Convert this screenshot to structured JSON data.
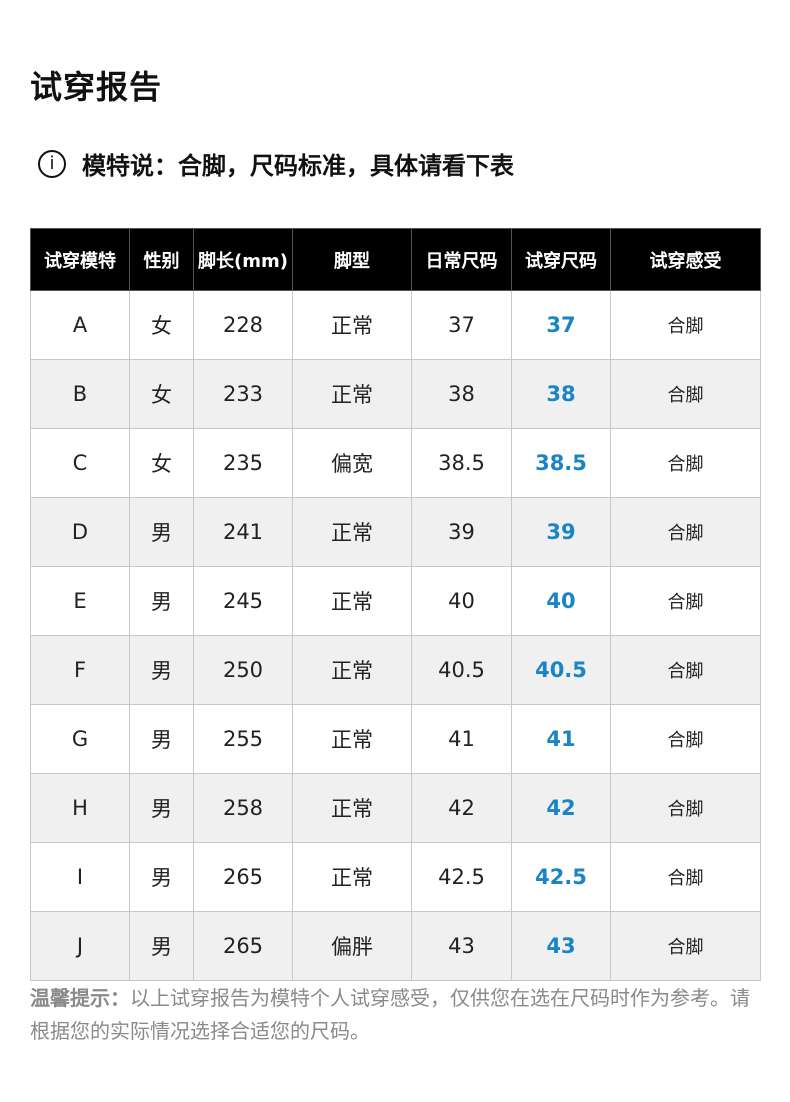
{
  "title": "试穿报告",
  "model_note": "模特说：合脚，尺码标准，具体请看下表",
  "info_icon": "i",
  "colors": {
    "header_bg": "#000000",
    "accent": "#1a84c4",
    "alt_row": "#f0f0f0"
  },
  "table": {
    "headers": [
      "试穿模特",
      "性别",
      "脚长(mm)",
      "脚型",
      "日常尺码",
      "试穿尺码",
      "试穿感受"
    ],
    "rows": [
      [
        "A",
        "女",
        "228",
        "正常",
        "37",
        "37",
        "合脚"
      ],
      [
        "B",
        "女",
        "233",
        "正常",
        "38",
        "38",
        "合脚"
      ],
      [
        "C",
        "女",
        "235",
        "偏宽",
        "38.5",
        "38.5",
        "合脚"
      ],
      [
        "D",
        "男",
        "241",
        "正常",
        "39",
        "39",
        "合脚"
      ],
      [
        "E",
        "男",
        "245",
        "正常",
        "40",
        "40",
        "合脚"
      ],
      [
        "F",
        "男",
        "250",
        "正常",
        "40.5",
        "40.5",
        "合脚"
      ],
      [
        "G",
        "男",
        "255",
        "正常",
        "41",
        "41",
        "合脚"
      ],
      [
        "H",
        "男",
        "258",
        "正常",
        "42",
        "42",
        "合脚"
      ],
      [
        "I",
        "男",
        "265",
        "正常",
        "42.5",
        "42.5",
        "合脚"
      ],
      [
        "J",
        "男",
        "265",
        "偏胖",
        "43",
        "43",
        "合脚"
      ]
    ]
  },
  "tip": {
    "label": "温馨提示：",
    "text": "以上试穿报告为模特个人试穿感受，仅供您在选在尺码时作为参考。请根据您的实际情况选择合适您的尺码。"
  }
}
